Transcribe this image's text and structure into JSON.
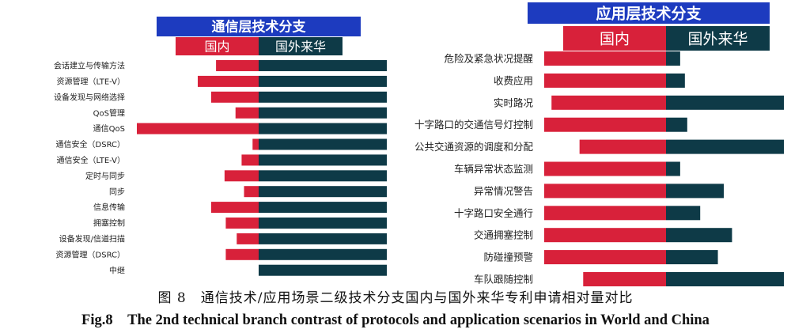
{
  "chart_data": [
    {
      "type": "bar",
      "orientation": "diverging-horizontal",
      "title": "通信层技术分支",
      "legend": [
        "国内",
        "国外来华"
      ],
      "categories": [
        "会话建立与传输方法",
        "资源管理（LTE-V）",
        "设备发现与网络选择",
        "QoS管理",
        "通信QoS",
        "通信安全（DSRC）",
        "通信安全（LTE-V）",
        "定时与同步",
        "同步",
        "信息传输",
        "拥塞控制",
        "设备发现/信道扫描",
        "资源管理（DSRC）",
        "中继"
      ],
      "series": [
        {
          "name": "国内",
          "values": [
            0.35,
            0.5,
            0.39,
            0.19,
            1.0,
            0.05,
            0.14,
            0.28,
            0.12,
            0.39,
            0.27,
            0.18,
            0.27,
            0.0
          ]
        },
        {
          "name": "国外来华",
          "values": [
            1,
            1,
            1,
            1,
            1,
            1,
            1,
            1,
            1,
            1,
            1,
            1,
            1,
            1
          ]
        }
      ]
    },
    {
      "type": "bar",
      "orientation": "diverging-horizontal",
      "title": "应用层技术分支",
      "legend": [
        "国内",
        "国外来华"
      ],
      "categories": [
        "危险及紧急状况提醒",
        "收费应用",
        "实时路况",
        "十字路口的交通信号灯控制",
        "公共交通资源的调度和分配",
        "车辆异常状态监测",
        "异常情况警告",
        "十字路口安全通行",
        "交通拥塞控制",
        "防碰撞预警",
        "车队跟随控制"
      ],
      "series": [
        {
          "name": "国内",
          "values": [
            1.0,
            1.0,
            0.94,
            1.0,
            0.71,
            1.0,
            1.0,
            1.0,
            1.0,
            1.0,
            0.68
          ]
        },
        {
          "name": "国外来华",
          "values": [
            0.12,
            0.16,
            1.0,
            0.18,
            1.0,
            0.12,
            0.49,
            0.29,
            0.56,
            0.44,
            1.0
          ]
        }
      ]
    }
  ],
  "colors": {
    "domestic": "#d8213a",
    "foreign": "#0e3a47",
    "header": "#1d3bbf"
  },
  "caption_zh": "图 8　通信技术/应用场景二级技术分支国内与国外来华专利申请相对量对比",
  "caption_en": "Fig.8　The 2nd technical branch contrast of protocols and application scenarios in World and China"
}
